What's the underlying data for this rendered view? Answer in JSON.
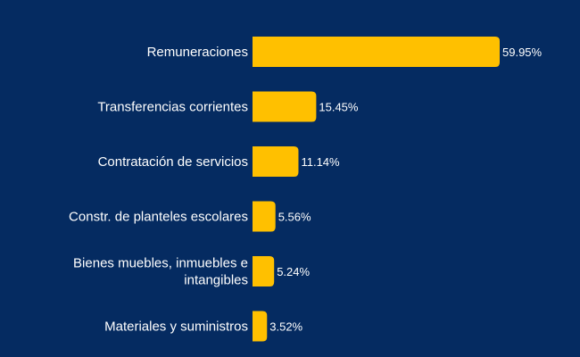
{
  "chart_data": {
    "type": "bar",
    "orientation": "horizontal",
    "categories": [
      "Remuneraciones",
      "Transferencias corrientes",
      "Contratación de servicios",
      "Constr. de planteles escolares",
      "Bienes muebles, inmuebles e intangibles",
      "Materiales y suministros"
    ],
    "category_lines": [
      [
        "Remuneraciones"
      ],
      [
        "Transferencias corrientes"
      ],
      [
        "Contratación de servicios"
      ],
      [
        "Constr. de planteles escolares"
      ],
      [
        "Bienes muebles, inmuebles e",
        "intangibles"
      ],
      [
        "Materiales y suministros"
      ]
    ],
    "values": [
      59.95,
      15.45,
      11.14,
      5.56,
      5.24,
      3.52
    ],
    "value_labels": [
      "59.95%",
      "15.45%",
      "11.14%",
      "5.56%",
      "5.24%",
      "3.52%"
    ],
    "title": "",
    "xlabel": "",
    "ylabel": "",
    "xlim": [
      0,
      59.95
    ],
    "grid": false,
    "legend": "none",
    "colors": {
      "background": "#052b61",
      "bar": "#ffc000",
      "text": "#ffffff"
    }
  }
}
